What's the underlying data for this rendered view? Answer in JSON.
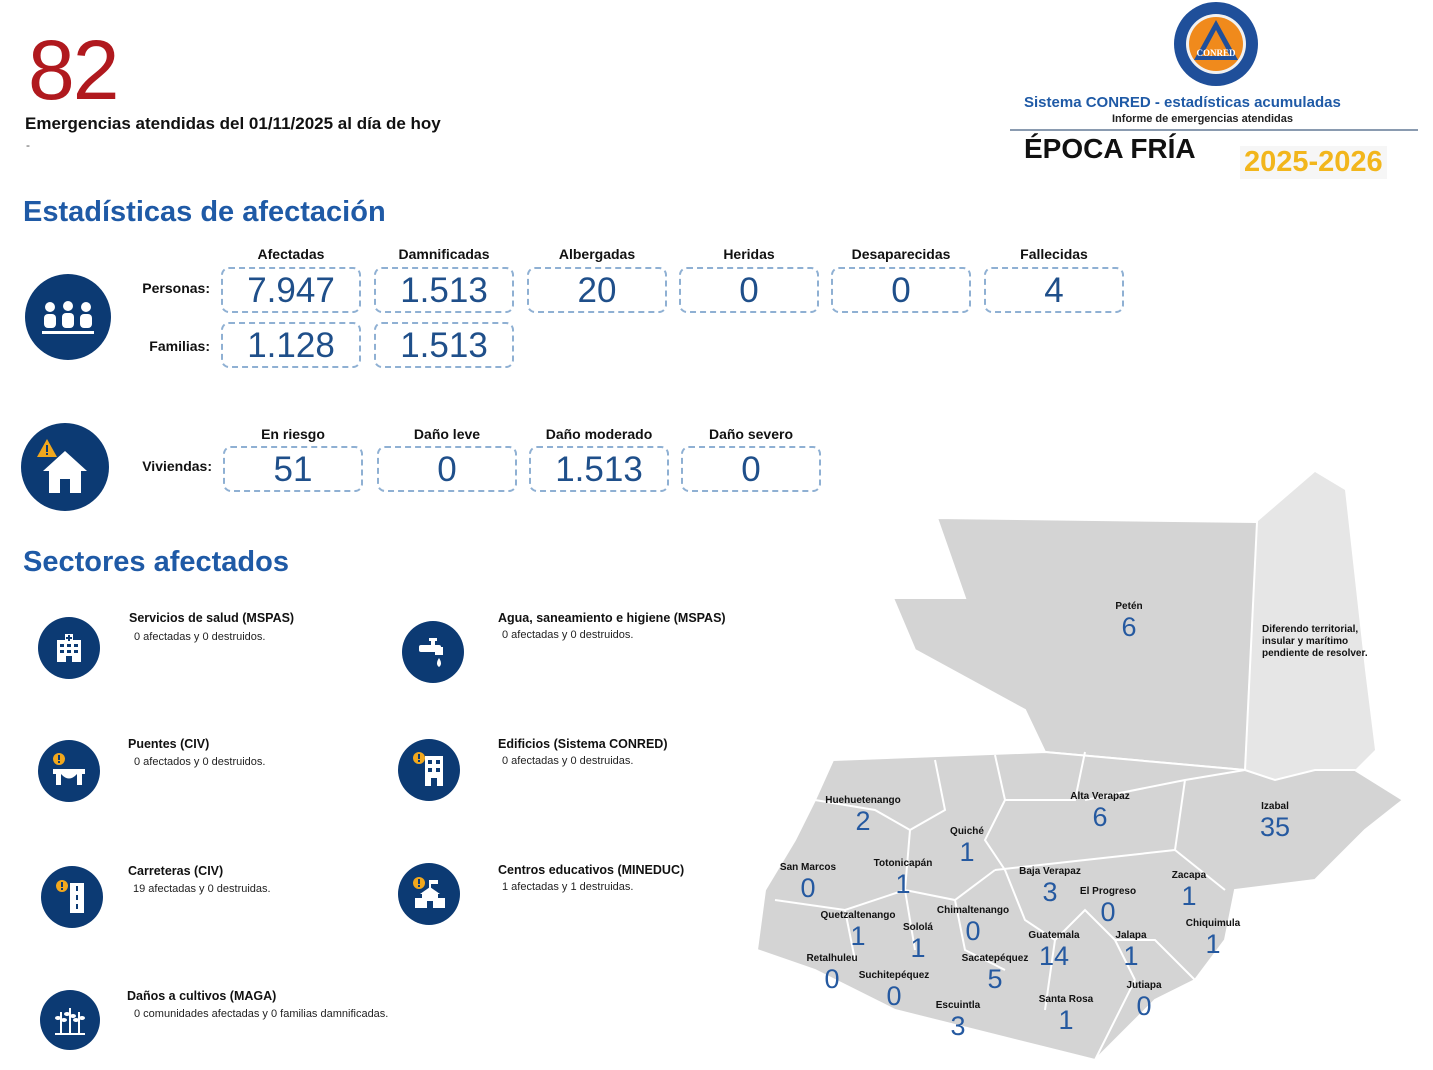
{
  "header": {
    "count": "82",
    "headline": "Emergencias atendidas del 01/11/2025 al día de hoy",
    "dash": "-"
  },
  "logo": {
    "seal_text": "CONRED",
    "system_title": "Sistema CONRED - estadísticas acumuladas",
    "subtitle": "Informe de emergencias atendidas",
    "season": "ÉPOCA FRÍA",
    "season_years": "2025-2026"
  },
  "stats": {
    "title": "Estadísticas de afectación",
    "people_columns": [
      "Afectadas",
      "Damnificadas",
      "Albergadas",
      "Heridas",
      "Desaparecidas",
      "Fallecidas"
    ],
    "people_label": "Personas:",
    "people_values": [
      "7.947",
      "1.513",
      "20",
      "0",
      "0",
      "4"
    ],
    "families_label": "Familias:",
    "families_values": [
      "1.128",
      "1.513"
    ],
    "housing_columns": [
      "En riesgo",
      "Daño leve",
      "Daño moderado",
      "Daño severo"
    ],
    "housing_label": "Viviendas:",
    "housing_values": [
      "51",
      "0",
      "1.513",
      "0"
    ]
  },
  "sectors": {
    "title": "Sectores afectados",
    "items": [
      {
        "title": "Servicios de salud (MSPAS)",
        "desc": "0 afectadas y 0 destruidos.",
        "icon": "hospital-icon"
      },
      {
        "title": "Agua, saneamiento e higiene (MSPAS)",
        "desc": "0 afectadas y 0 destruidos.",
        "icon": "water-tap-icon"
      },
      {
        "title": "Puentes (CIV)",
        "desc": "0 afectados y 0 destruidos.",
        "icon": "bridge-icon"
      },
      {
        "title": "Edificios (Sistema CONRED)",
        "desc": "0 afectadas y 0 destruidas.",
        "icon": "building-icon"
      },
      {
        "title": "Carreteras (CIV)",
        "desc": "19 afectadas y 0 destruidas.",
        "icon": "road-icon"
      },
      {
        "title": "Centros educativos (MINEDUC)",
        "desc": "1 afectadas y 1 destruidas.",
        "icon": "school-icon"
      },
      {
        "title": "Daños a cultivos (MAGA)",
        "desc": "0 comunidades afectadas y 0 familias damnificadas.",
        "icon": "crops-icon"
      }
    ]
  },
  "map": {
    "note": "Diferendo territorial, insular y marítimo pendiente de resolver.",
    "departments": [
      {
        "name": "Petén",
        "value": "6"
      },
      {
        "name": "Huehuetenango",
        "value": "2"
      },
      {
        "name": "Alta Verapaz",
        "value": "6"
      },
      {
        "name": "Izabal",
        "value": "35"
      },
      {
        "name": "Quiché",
        "value": "1"
      },
      {
        "name": "San Marcos",
        "value": "0"
      },
      {
        "name": "Totonicapán",
        "value": "1"
      },
      {
        "name": "Baja Verapaz",
        "value": "3"
      },
      {
        "name": "El Progreso",
        "value": "0"
      },
      {
        "name": "Zacapa",
        "value": "1"
      },
      {
        "name": "Quetzaltenango",
        "value": "1"
      },
      {
        "name": "Chimaltenango",
        "value": "0"
      },
      {
        "name": "Sololá",
        "value": "1"
      },
      {
        "name": "Guatemala",
        "value": "14"
      },
      {
        "name": "Jalapa",
        "value": "1"
      },
      {
        "name": "Chiquimula",
        "value": "1"
      },
      {
        "name": "Retalhuleu",
        "value": "0"
      },
      {
        "name": "Suchitepéquez",
        "value": "0"
      },
      {
        "name": "Sacatepéquez",
        "value": "5"
      },
      {
        "name": "Escuintla",
        "value": "3"
      },
      {
        "name": "Santa Rosa",
        "value": "1"
      },
      {
        "name": "Jutiapa",
        "value": "0"
      }
    ]
  }
}
